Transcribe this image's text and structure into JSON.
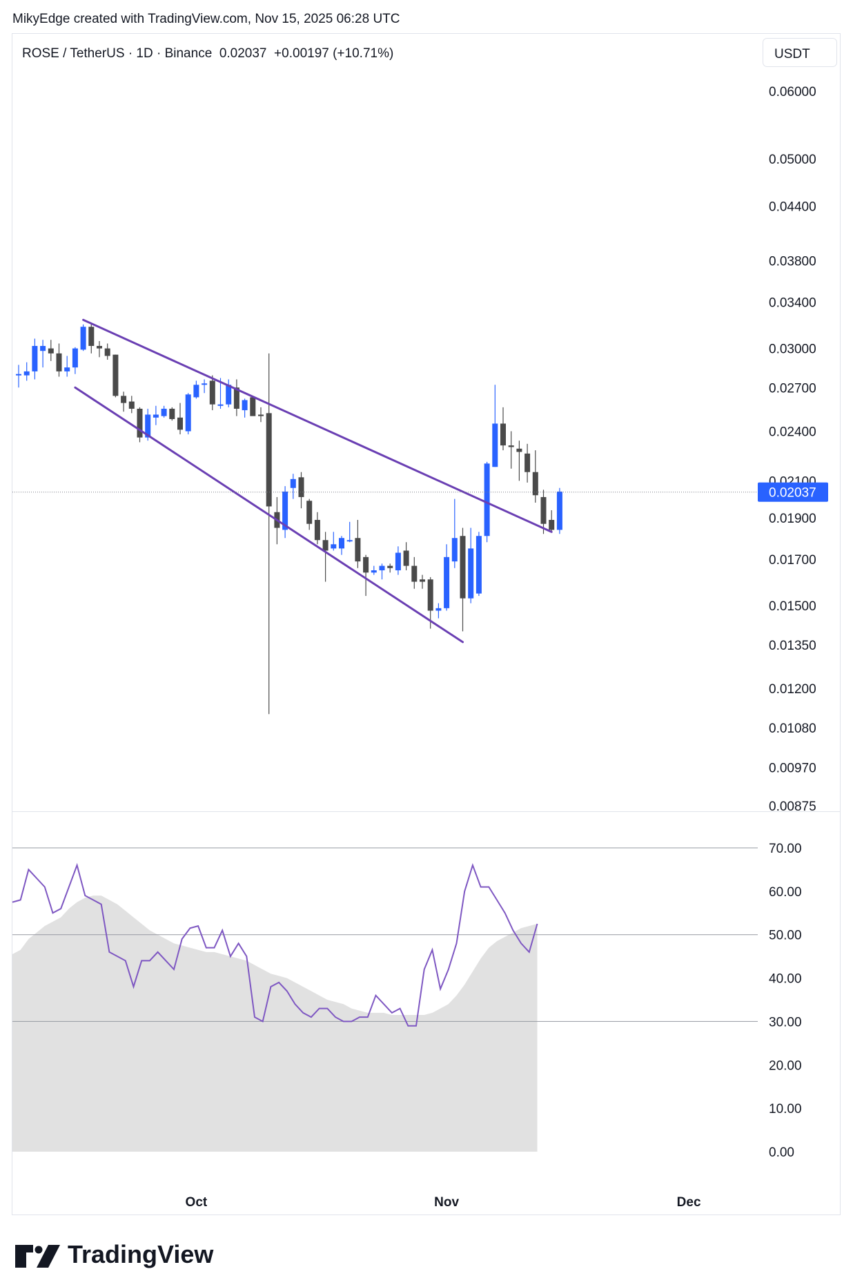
{
  "header": {
    "attribution": "MikyEdge created with TradingView.com, Nov 15, 2025 06:28 UTC",
    "symbol_line": "ROSE / TetherUS · 1D · Binance  0.02037  +0.00197 (+10.71%)",
    "currency": "USDT"
  },
  "logo": {
    "text": "TradingView"
  },
  "colors": {
    "up": "#2962ff",
    "down": "#4a4a4a",
    "channel": "#6a3fb3",
    "rsi_line": "#7e57c2",
    "rsi_fill": "#e1e1e1",
    "price_tag_bg": "#2962ff"
  },
  "chart_data": [
    {
      "type": "candlestick",
      "title": "ROSE / TetherUS · 1D · Binance",
      "y_scale": "log",
      "y_ticks": [
        "0.06000",
        "0.05000",
        "0.04400",
        "0.03800",
        "0.03400",
        "0.03000",
        "0.02700",
        "0.02400",
        "0.02100",
        "0.01900",
        "0.01700",
        "0.01500",
        "0.01350",
        "0.01200",
        "0.01080",
        "0.00970",
        "0.00875"
      ],
      "last_price_label": "0.02037",
      "x_ticks": [
        "Oct",
        "Nov",
        "Dec"
      ],
      "candles": [
        {
          "date": "2025-09-09",
          "o": 0.028,
          "h": 0.0287,
          "l": 0.027,
          "c": 0.028
        },
        {
          "date": "2025-09-10",
          "o": 0.0279,
          "h": 0.0289,
          "l": 0.0275,
          "c": 0.0282
        },
        {
          "date": "2025-09-11",
          "o": 0.0282,
          "h": 0.0308,
          "l": 0.0276,
          "c": 0.0302
        },
        {
          "date": "2025-09-12",
          "o": 0.0298,
          "h": 0.0307,
          "l": 0.0285,
          "c": 0.0302
        },
        {
          "date": "2025-09-13",
          "o": 0.03,
          "h": 0.0307,
          "l": 0.029,
          "c": 0.0296
        },
        {
          "date": "2025-09-14",
          "o": 0.0296,
          "h": 0.0304,
          "l": 0.0278,
          "c": 0.0282
        },
        {
          "date": "2025-09-15",
          "o": 0.0282,
          "h": 0.0294,
          "l": 0.0278,
          "c": 0.0285
        },
        {
          "date": "2025-09-16",
          "o": 0.0285,
          "h": 0.0301,
          "l": 0.028,
          "c": 0.03
        },
        {
          "date": "2025-09-17",
          "o": 0.0299,
          "h": 0.032,
          "l": 0.0298,
          "c": 0.0318
        },
        {
          "date": "2025-09-18",
          "o": 0.0318,
          "h": 0.0321,
          "l": 0.0296,
          "c": 0.0302
        },
        {
          "date": "2025-09-19",
          "o": 0.0302,
          "h": 0.0306,
          "l": 0.0293,
          "c": 0.03
        },
        {
          "date": "2025-09-20",
          "o": 0.03,
          "h": 0.0304,
          "l": 0.0291,
          "c": 0.0294
        },
        {
          "date": "2025-09-21",
          "o": 0.0295,
          "h": 0.0295,
          "l": 0.0263,
          "c": 0.0264
        },
        {
          "date": "2025-09-22",
          "o": 0.0264,
          "h": 0.0267,
          "l": 0.0253,
          "c": 0.0259
        },
        {
          "date": "2025-09-23",
          "o": 0.026,
          "h": 0.0264,
          "l": 0.0252,
          "c": 0.0255
        },
        {
          "date": "2025-09-24",
          "o": 0.0255,
          "h": 0.0256,
          "l": 0.0233,
          "c": 0.0236
        },
        {
          "date": "2025-09-25",
          "o": 0.0236,
          "h": 0.0255,
          "l": 0.0234,
          "c": 0.0251
        },
        {
          "date": "2025-09-26",
          "o": 0.0249,
          "h": 0.0257,
          "l": 0.0244,
          "c": 0.0251
        },
        {
          "date": "2025-09-27",
          "o": 0.025,
          "h": 0.0257,
          "l": 0.0249,
          "c": 0.0255
        },
        {
          "date": "2025-09-28",
          "o": 0.0255,
          "h": 0.0256,
          "l": 0.0247,
          "c": 0.0248
        },
        {
          "date": "2025-09-29",
          "o": 0.0249,
          "h": 0.0259,
          "l": 0.0238,
          "c": 0.0241
        },
        {
          "date": "2025-09-30",
          "o": 0.024,
          "h": 0.0266,
          "l": 0.0238,
          "c": 0.0265
        },
        {
          "date": "2025-10-01",
          "o": 0.0263,
          "h": 0.0275,
          "l": 0.0262,
          "c": 0.0272
        },
        {
          "date": "2025-10-02",
          "o": 0.0272,
          "h": 0.0276,
          "l": 0.0266,
          "c": 0.0273
        },
        {
          "date": "2025-10-03",
          "o": 0.0275,
          "h": 0.0279,
          "l": 0.0254,
          "c": 0.0258
        },
        {
          "date": "2025-10-04",
          "o": 0.0257,
          "h": 0.0277,
          "l": 0.0255,
          "c": 0.0258
        },
        {
          "date": "2025-10-05",
          "o": 0.0258,
          "h": 0.0276,
          "l": 0.0256,
          "c": 0.0272
        },
        {
          "date": "2025-10-06",
          "o": 0.027,
          "h": 0.0276,
          "l": 0.025,
          "c": 0.0255
        },
        {
          "date": "2025-10-07",
          "o": 0.0254,
          "h": 0.0262,
          "l": 0.0249,
          "c": 0.0261
        },
        {
          "date": "2025-10-08",
          "o": 0.0263,
          "h": 0.0264,
          "l": 0.0251,
          "c": 0.025
        },
        {
          "date": "2025-10-09",
          "o": 0.0251,
          "h": 0.0256,
          "l": 0.0246,
          "c": 0.025
        },
        {
          "date": "2025-10-10",
          "o": 0.0252,
          "h": 0.0296,
          "l": 0.0112,
          "c": 0.0196
        },
        {
          "date": "2025-10-11",
          "o": 0.0193,
          "h": 0.0201,
          "l": 0.0177,
          "c": 0.0185
        },
        {
          "date": "2025-10-12",
          "o": 0.0184,
          "h": 0.0207,
          "l": 0.018,
          "c": 0.0204
        },
        {
          "date": "2025-10-13",
          "o": 0.0206,
          "h": 0.0214,
          "l": 0.02,
          "c": 0.0211
        },
        {
          "date": "2025-10-14",
          "o": 0.0212,
          "h": 0.0215,
          "l": 0.0195,
          "c": 0.0201
        },
        {
          "date": "2025-10-15",
          "o": 0.0199,
          "h": 0.02,
          "l": 0.0184,
          "c": 0.0187
        },
        {
          "date": "2025-10-16",
          "o": 0.0189,
          "h": 0.0193,
          "l": 0.0177,
          "c": 0.0179
        },
        {
          "date": "2025-10-17",
          "o": 0.0179,
          "h": 0.0183,
          "l": 0.016,
          "c": 0.0174
        },
        {
          "date": "2025-10-18",
          "o": 0.0175,
          "h": 0.0183,
          "l": 0.0174,
          "c": 0.0177
        },
        {
          "date": "2025-10-19",
          "o": 0.0175,
          "h": 0.0181,
          "l": 0.0172,
          "c": 0.018
        },
        {
          "date": "2025-10-20",
          "o": 0.0179,
          "h": 0.0188,
          "l": 0.0178,
          "c": 0.0179
        },
        {
          "date": "2025-10-21",
          "o": 0.018,
          "h": 0.0189,
          "l": 0.0166,
          "c": 0.0169
        },
        {
          "date": "2025-10-22",
          "o": 0.0171,
          "h": 0.0172,
          "l": 0.0154,
          "c": 0.0164
        },
        {
          "date": "2025-10-23",
          "o": 0.0164,
          "h": 0.0167,
          "l": 0.0163,
          "c": 0.0165
        },
        {
          "date": "2025-10-24",
          "o": 0.0165,
          "h": 0.0168,
          "l": 0.0161,
          "c": 0.0167
        },
        {
          "date": "2025-10-25",
          "o": 0.0167,
          "h": 0.0168,
          "l": 0.0164,
          "c": 0.0166
        },
        {
          "date": "2025-10-26",
          "o": 0.0165,
          "h": 0.0176,
          "l": 0.0163,
          "c": 0.0173
        },
        {
          "date": "2025-10-27",
          "o": 0.0174,
          "h": 0.0178,
          "l": 0.0165,
          "c": 0.0167
        },
        {
          "date": "2025-10-28",
          "o": 0.0167,
          "h": 0.0171,
          "l": 0.0157,
          "c": 0.016
        },
        {
          "date": "2025-10-29",
          "o": 0.0161,
          "h": 0.0163,
          "l": 0.0157,
          "c": 0.016
        },
        {
          "date": "2025-10-30",
          "o": 0.0161,
          "h": 0.0162,
          "l": 0.0141,
          "c": 0.0148
        },
        {
          "date": "2025-10-31",
          "o": 0.0148,
          "h": 0.0151,
          "l": 0.0145,
          "c": 0.0149
        },
        {
          "date": "2025-11-01",
          "o": 0.0149,
          "h": 0.0177,
          "l": 0.0148,
          "c": 0.0171
        },
        {
          "date": "2025-11-02",
          "o": 0.0169,
          "h": 0.02,
          "l": 0.0166,
          "c": 0.018
        },
        {
          "date": "2025-11-03",
          "o": 0.0181,
          "h": 0.0185,
          "l": 0.014,
          "c": 0.0153
        },
        {
          "date": "2025-11-04",
          "o": 0.0153,
          "h": 0.0185,
          "l": 0.0151,
          "c": 0.0175
        },
        {
          "date": "2025-11-05",
          "o": 0.0155,
          "h": 0.0183,
          "l": 0.0154,
          "c": 0.0181
        },
        {
          "date": "2025-11-06",
          "o": 0.0181,
          "h": 0.0221,
          "l": 0.0178,
          "c": 0.022
        },
        {
          "date": "2025-11-07",
          "o": 0.0218,
          "h": 0.0272,
          "l": 0.0218,
          "c": 0.0245
        },
        {
          "date": "2025-11-08",
          "o": 0.0245,
          "h": 0.0256,
          "l": 0.0228,
          "c": 0.0231
        },
        {
          "date": "2025-11-09",
          "o": 0.0231,
          "h": 0.024,
          "l": 0.0217,
          "c": 0.023
        },
        {
          "date": "2025-11-10",
          "o": 0.0229,
          "h": 0.0234,
          "l": 0.021,
          "c": 0.0227
        },
        {
          "date": "2025-11-11",
          "o": 0.0226,
          "h": 0.0232,
          "l": 0.0209,
          "c": 0.0215
        },
        {
          "date": "2025-11-12",
          "o": 0.0215,
          "h": 0.0228,
          "l": 0.0198,
          "c": 0.0202
        },
        {
          "date": "2025-11-13",
          "o": 0.0201,
          "h": 0.0205,
          "l": 0.0182,
          "c": 0.0187
        },
        {
          "date": "2025-11-14",
          "o": 0.0189,
          "h": 0.0194,
          "l": 0.0183,
          "c": 0.0184
        },
        {
          "date": "2025-11-15",
          "o": 0.0184,
          "h": 0.0206,
          "l": 0.0182,
          "c": 0.0204
        }
      ],
      "trendlines": [
        {
          "name": "channel-upper",
          "from": {
            "date": "2025-09-17",
            "price": 0.0324
          },
          "to": {
            "date": "2025-11-14",
            "price": 0.0183
          }
        },
        {
          "name": "channel-lower",
          "from": {
            "date": "2025-09-16",
            "price": 0.027
          },
          "to": {
            "date": "2025-11-03",
            "price": 0.0136
          }
        }
      ]
    },
    {
      "type": "line",
      "title": "",
      "y_ticks": [
        "70.00",
        "60.00",
        "50.00",
        "40.00",
        "30.00",
        "20.00",
        "10.00",
        "0.00"
      ],
      "ylim": [
        0,
        70
      ],
      "levels": [
        70,
        50,
        30
      ],
      "series": [
        {
          "values": [
            57.5,
            58,
            65,
            63,
            61,
            55,
            56,
            61,
            66,
            59,
            58,
            57,
            46,
            45,
            44,
            38,
            44,
            44,
            46,
            44,
            42,
            49,
            51.5,
            52,
            47,
            47,
            51,
            45,
            48,
            45,
            31,
            30,
            38,
            39,
            37,
            34,
            32,
            31,
            33,
            33,
            31,
            30,
            30,
            31,
            31,
            36,
            34,
            32,
            33,
            29,
            29,
            42,
            46.5,
            37.5,
            42,
            48,
            60,
            66,
            61,
            61,
            58,
            55,
            51,
            48,
            46,
            52.5
          ]
        },
        {
          "values": [
            45.5,
            46.5,
            49,
            50.5,
            52,
            53,
            54,
            56,
            57.5,
            58.5,
            59,
            59,
            58,
            57,
            55.5,
            54,
            52.5,
            51,
            50,
            49,
            48,
            47.5,
            47,
            46.5,
            46,
            46,
            45.5,
            45,
            44.5,
            44,
            43,
            42,
            41,
            40.5,
            40,
            39,
            38,
            37,
            36,
            35,
            34.5,
            34,
            33,
            32.5,
            32,
            32,
            32,
            31.5,
            31.5,
            31.5,
            31.5,
            31.5,
            32,
            33,
            34,
            36,
            38.5,
            41.5,
            44.5,
            47,
            48.5,
            49.5,
            50.5,
            51.5,
            52,
            52.5
          ]
        }
      ]
    }
  ]
}
